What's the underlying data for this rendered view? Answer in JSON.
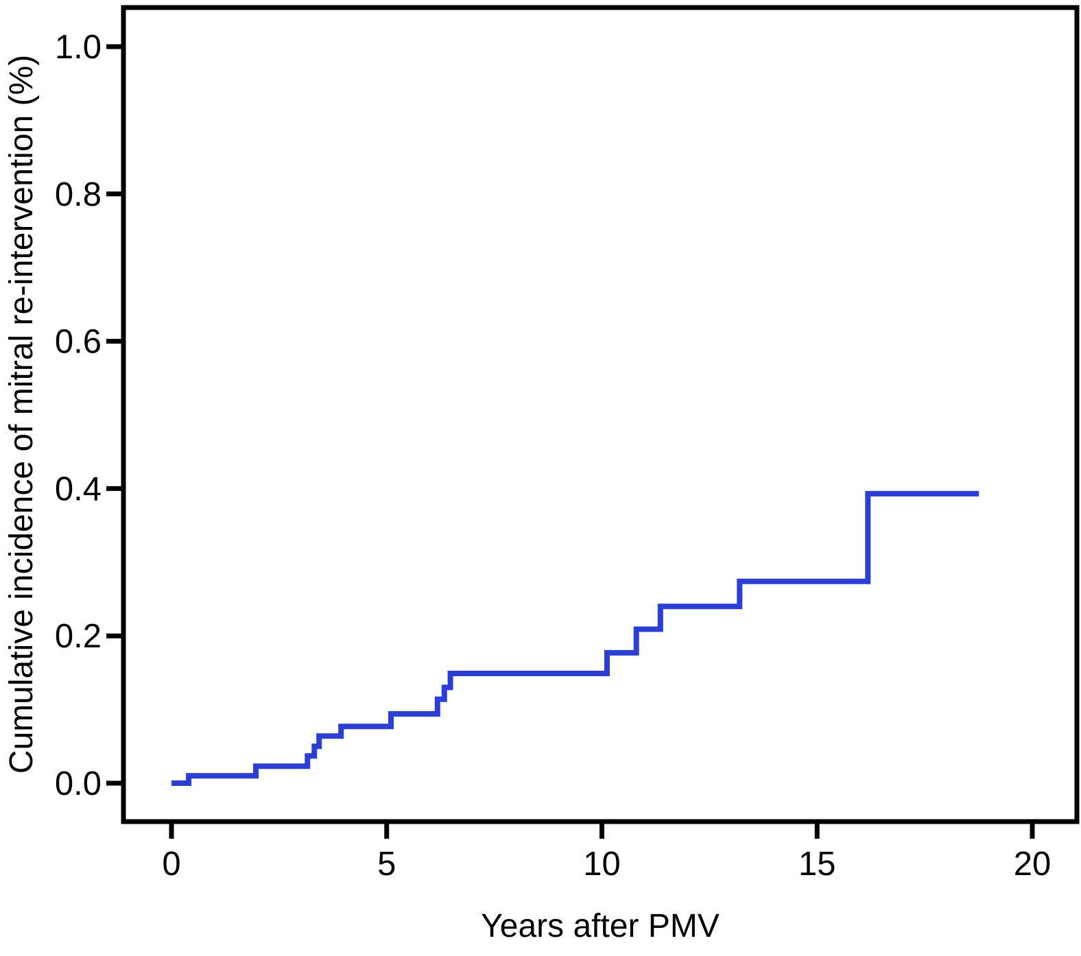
{
  "figure": {
    "background": "#ffffff",
    "frame_color": "#000000",
    "accent_color": "#2b3fd4"
  },
  "chart_data": {
    "type": "line",
    "subtype": "step-post",
    "title": "",
    "xlabel": "Years after PMV",
    "ylabel": "Cumulative incidence of mitral re-intervention (%)",
    "xlim": [
      0,
      20
    ],
    "ylim": [
      0.0,
      1.0
    ],
    "xticks": [
      {
        "value": 0,
        "label": "0"
      },
      {
        "value": 5,
        "label": "5"
      },
      {
        "value": 10,
        "label": "10"
      },
      {
        "value": 15,
        "label": "15"
      },
      {
        "value": 20,
        "label": "20"
      }
    ],
    "yticks": [
      {
        "value": 0.0,
        "label": "0.0"
      },
      {
        "value": 0.2,
        "label": "0.2"
      },
      {
        "value": 0.4,
        "label": "0.4"
      },
      {
        "value": 0.6,
        "label": "0.6"
      },
      {
        "value": 0.8,
        "label": "0.8"
      },
      {
        "value": 1.0,
        "label": "1.0"
      }
    ],
    "grid": false,
    "legend_position": "none",
    "series": [
      {
        "name": "cumulative-incidence-of-mitral-reintervention",
        "color": "#2b3fd4",
        "points": [
          [
            0.0,
            0.0
          ],
          [
            0.4,
            0.01
          ],
          [
            1.96,
            0.023
          ],
          [
            3.16,
            0.037
          ],
          [
            3.32,
            0.05
          ],
          [
            3.43,
            0.064
          ],
          [
            3.94,
            0.077
          ],
          [
            5.1,
            0.094
          ],
          [
            6.18,
            0.114
          ],
          [
            6.34,
            0.13
          ],
          [
            6.48,
            0.149
          ],
          [
            10.12,
            0.177
          ],
          [
            10.8,
            0.209
          ],
          [
            11.36,
            0.24
          ],
          [
            13.2,
            0.274
          ],
          [
            16.18,
            0.393
          ],
          [
            18.76,
            0.393
          ]
        ]
      }
    ]
  }
}
